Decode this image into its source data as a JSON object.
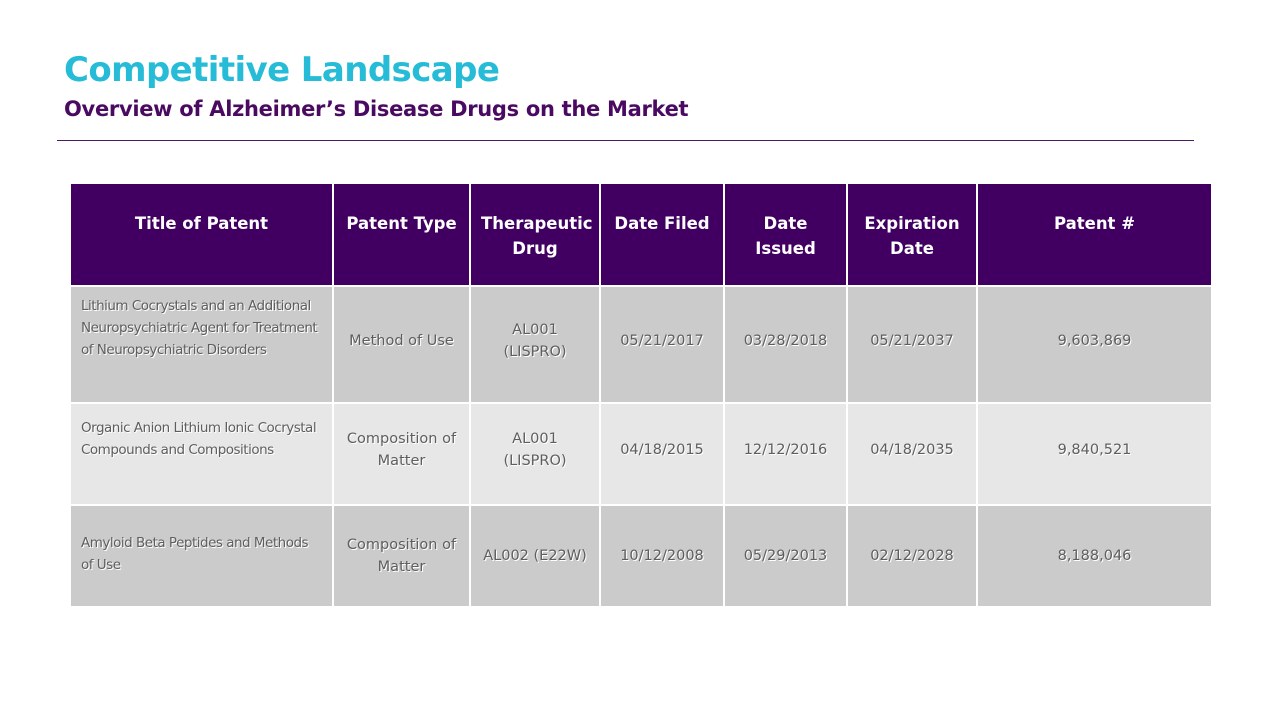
{
  "header": {
    "title": "Competitive Landscape",
    "subtitle": "Overview of Alzheimer’s Disease Drugs on the Market"
  },
  "colors": {
    "title": "#26bcd7",
    "subtitle": "#4a0a62",
    "table_header_bg": "#410061",
    "row_dark": "#cbcbcb",
    "row_light": "#e7e7e7"
  },
  "table": {
    "columns": [
      "Title of Patent",
      "Patent Type",
      "Therapeutic Drug",
      "Date Filed",
      "Date Issued",
      "Expiration Date",
      "Patent #"
    ],
    "rows": [
      {
        "title_of_patent": "Lithium Cocrystals and an Additional Neuropsychiatric Agent for Treatment of Neuropsychiatric Disorders",
        "patent_type": "Method of Use",
        "therapeutic_drug": "AL001 (LISPRO)",
        "date_filed": "05/21/2017",
        "date_issued": "03/28/2018",
        "expiration_date": "05/21/2037",
        "patent_number": "9,603,869"
      },
      {
        "title_of_patent": "Organic Anion Lithium Ionic Cocrystal Compounds and Compositions",
        "patent_type": "Composition of Matter",
        "therapeutic_drug": "AL001 (LISPRO)",
        "date_filed": "04/18/2015",
        "date_issued": "12/12/2016",
        "expiration_date": "04/18/2035",
        "patent_number": "9,840,521"
      },
      {
        "title_of_patent": "Amyloid Beta Peptides and Methods of Use",
        "patent_type": "Composition of Matter",
        "therapeutic_drug": "AL002 (E22W)",
        "date_filed": "10/12/2008",
        "date_issued": "05/29/2013",
        "expiration_date": "02/12/2028",
        "patent_number": "8,188,046"
      }
    ]
  }
}
